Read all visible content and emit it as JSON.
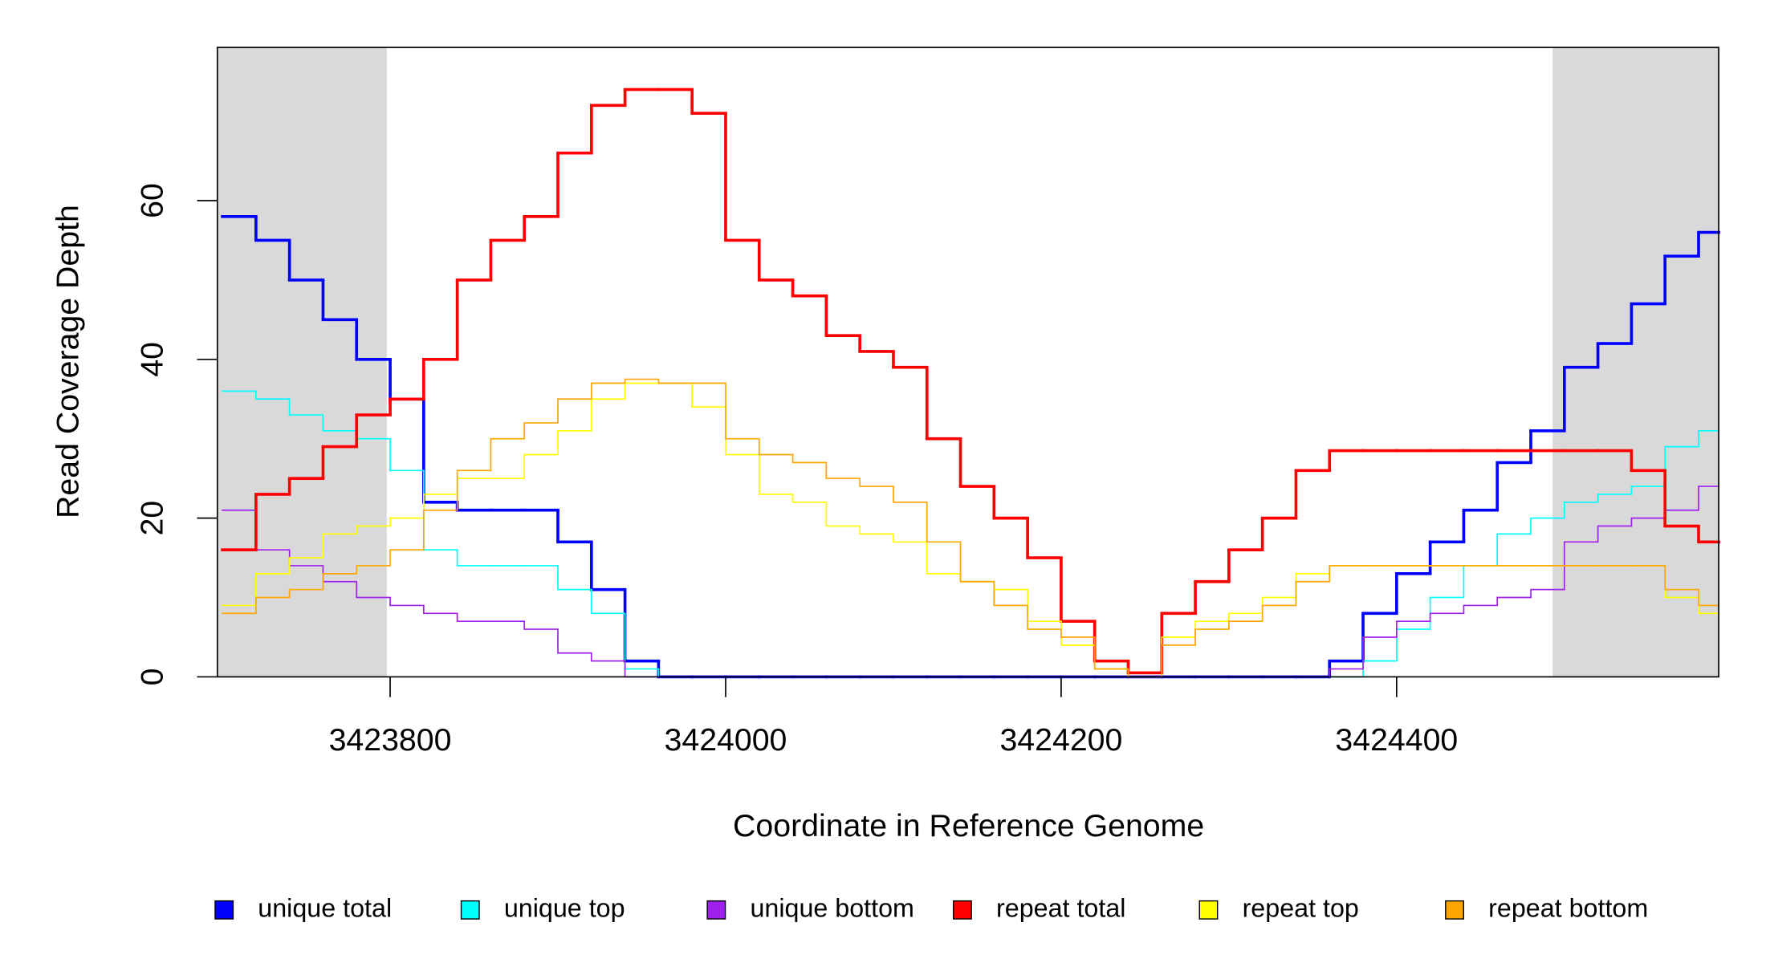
{
  "chart_data": {
    "type": "line",
    "step": true,
    "xlabel": "Coordinate in Reference Genome",
    "ylabel": "Read Coverage Depth",
    "xlim": [
      3423697,
      3424592
    ],
    "ylim": [
      0,
      79.3
    ],
    "xticks": [
      3423800,
      3424000,
      3424200,
      3424400
    ],
    "yticks": [
      0,
      20,
      40,
      60
    ],
    "shaded_regions": [
      [
        3423697,
        3423798
      ],
      [
        3424493,
        3424592
      ]
    ],
    "shade_color": "#d9d9d9",
    "legend": "bottom",
    "x": [
      3423700,
      3423720,
      3423740,
      3423760,
      3423780,
      3423800,
      3423820,
      3423840,
      3423860,
      3423880,
      3423900,
      3423920,
      3423940,
      3423960,
      3423980,
      3424000,
      3424020,
      3424040,
      3424060,
      3424080,
      3424100,
      3424120,
      3424140,
      3424160,
      3424180,
      3424200,
      3424220,
      3424240,
      3424260,
      3424280,
      3424300,
      3424320,
      3424340,
      3424360,
      3424380,
      3424400,
      3424420,
      3424440,
      3424460,
      3424480,
      3424500,
      3424520,
      3424540,
      3424560,
      3424580
    ],
    "series": [
      {
        "name": "unique total",
        "color": "#0000ff",
        "values": [
          58,
          55,
          50,
          45,
          40,
          35,
          22,
          21,
          21,
          21,
          17,
          11,
          2,
          0,
          0,
          0,
          0,
          0,
          0,
          0,
          0,
          0,
          0,
          0,
          0,
          0,
          0,
          0,
          0,
          0,
          0,
          0,
          0,
          2,
          8,
          13,
          17,
          21,
          27,
          31,
          39,
          42,
          47,
          53,
          56
        ]
      },
      {
        "name": "unique top",
        "color": "#00ffff",
        "values": [
          36,
          35,
          33,
          31,
          30,
          26,
          16,
          14,
          14,
          14,
          11,
          8,
          1,
          0,
          0,
          0,
          0,
          0,
          0,
          0,
          0,
          0,
          0,
          0,
          0,
          0,
          0,
          0,
          0,
          0,
          0,
          0,
          0,
          0,
          2,
          6,
          10,
          14,
          18,
          20,
          22,
          23,
          24,
          29,
          31
        ]
      },
      {
        "name": "unique bottom",
        "color": "#a020f0",
        "values": [
          21,
          16,
          14,
          12,
          10,
          9,
          8,
          7,
          7,
          6,
          3,
          2,
          0,
          0,
          0,
          0,
          0,
          0,
          0,
          0,
          0,
          0,
          0,
          0,
          0,
          0,
          0,
          0,
          0,
          0,
          0,
          0,
          0,
          1,
          5,
          7,
          8,
          9,
          10,
          11,
          17,
          19,
          20,
          21,
          24
        ]
      },
      {
        "name": "repeat total",
        "color": "#ff0000",
        "values": [
          16,
          23,
          25,
          29,
          33,
          35,
          40,
          50,
          55,
          58,
          66,
          72,
          74,
          74,
          71,
          55,
          50,
          48,
          43,
          41,
          39,
          30,
          24,
          20,
          15,
          7,
          2,
          0.5,
          8,
          12,
          16,
          20,
          26,
          28.5,
          28.5,
          28.5,
          28.5,
          28.5,
          28.5,
          28.5,
          28.5,
          28.5,
          26,
          19,
          17
        ]
      },
      {
        "name": "repeat top",
        "color": "#ffff00",
        "values": [
          9,
          13,
          15,
          18,
          19,
          20,
          23,
          25,
          25,
          28,
          31,
          35,
          37,
          37,
          34,
          28,
          23,
          22,
          19,
          18,
          17,
          13,
          12,
          11,
          7,
          4,
          1,
          0,
          5,
          7,
          8,
          10,
          13,
          14,
          14,
          14,
          14,
          14,
          14,
          14,
          14,
          14,
          14,
          10,
          8
        ]
      },
      {
        "name": "repeat bottom",
        "color": "#ffa500",
        "values": [
          8,
          10,
          11,
          13,
          14,
          16,
          21,
          26,
          30,
          32,
          35,
          37,
          37.5,
          37,
          37,
          30,
          28,
          27,
          25,
          24,
          22,
          17,
          12,
          9,
          6,
          5,
          1,
          0,
          4,
          6,
          7,
          9,
          12,
          14,
          14,
          14,
          14,
          14,
          14,
          14,
          14,
          14,
          14,
          11,
          9
        ]
      }
    ]
  }
}
